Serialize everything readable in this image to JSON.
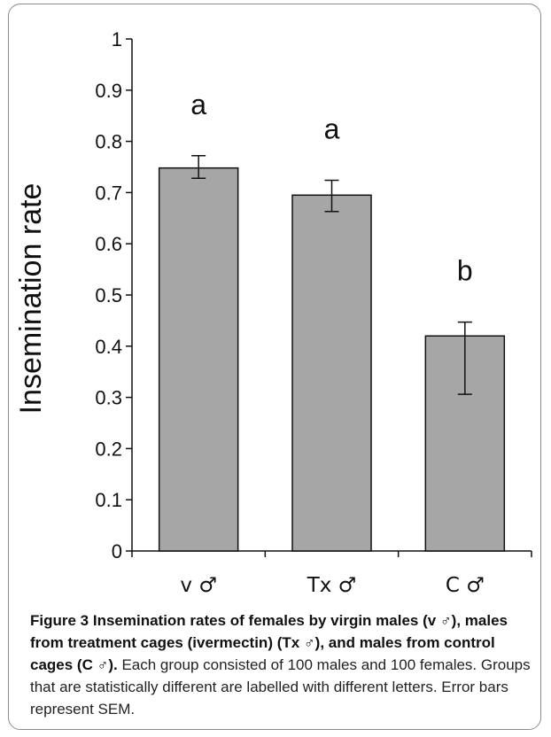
{
  "chart_data": {
    "type": "bar",
    "categories": [
      "v ♂",
      "Tx ♂",
      "C ♂"
    ],
    "values": [
      0.748,
      0.695,
      0.42
    ],
    "error_upper": [
      0.772,
      0.724,
      0.447
    ],
    "error_lower": [
      0.728,
      0.663,
      0.306
    ],
    "significance_letters": [
      "a",
      "a",
      "b"
    ],
    "ylabel": "Insemination rate",
    "xlabel": "",
    "ylim": [
      0,
      1
    ],
    "y_ticks": [
      "0",
      "0.1",
      "0.2",
      "0.3",
      "0.4",
      "0.5",
      "0.6",
      "0.7",
      "0.8",
      "0.9",
      "1"
    ],
    "bar_color": "#a6a6a6",
    "grid": false,
    "legend": "none"
  },
  "caption": {
    "bold": "Figure 3 Insemination rates of females by virgin males (v ♂), males from treatment cages (ivermectin) (Tx ♂), and males from control cages (C ♂).",
    "text": " Each group consisted of 100 males and 100 females. Groups that are statistically different are labelled with different letters. Error bars represent SEM."
  }
}
